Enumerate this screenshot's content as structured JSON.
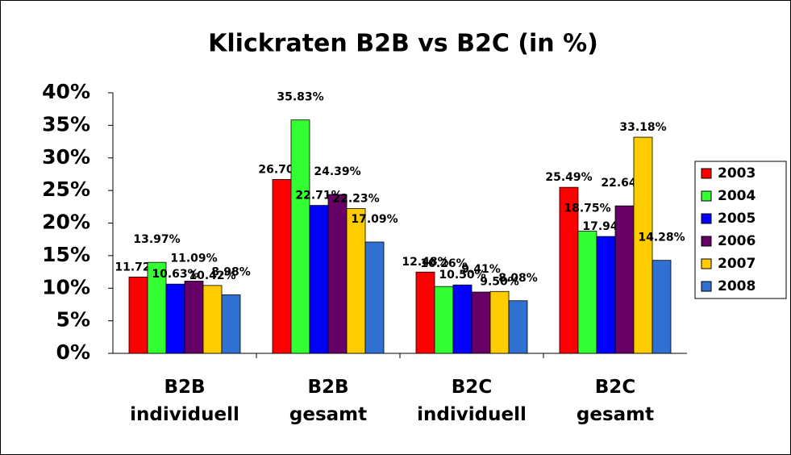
{
  "chart_data": {
    "type": "bar",
    "title": "Klickraten B2B vs B2C (in %)",
    "categories": [
      "B2B individuell",
      "B2B gesamt",
      "B2C individuell",
      "B2C gesamt"
    ],
    "series": [
      {
        "name": "2003",
        "color": "#ff0000",
        "values": [
          11.72,
          26.7,
          12.48,
          25.49
        ],
        "value_labels": [
          "11.72%",
          "26.70%",
          "12.48%",
          "25.49%"
        ]
      },
      {
        "name": "2004",
        "color": "#33ff33",
        "values": [
          13.97,
          35.83,
          10.26,
          18.75
        ],
        "value_labels": [
          "13.97%",
          "35.83%",
          "10.26%",
          "18.75%"
        ]
      },
      {
        "name": "2005",
        "color": "#0000ff",
        "values": [
          10.63,
          22.71,
          10.5,
          17.94
        ],
        "value_labels": [
          "10.63%",
          "22.71%",
          "10.50%",
          "17.94%"
        ]
      },
      {
        "name": "2006",
        "color": "#660066",
        "values": [
          11.09,
          24.39,
          9.41,
          22.64
        ],
        "value_labels": [
          "11.09%",
          "24.39%",
          "9.41%",
          "22.64%"
        ]
      },
      {
        "name": "2007",
        "color": "#ffcc00",
        "values": [
          10.42,
          22.23,
          9.5,
          33.18
        ],
        "value_labels": [
          "10.42%",
          "22.23%",
          "9.50%",
          "33.18%"
        ]
      },
      {
        "name": "2008",
        "color": "#3070d0",
        "values": [
          8.98,
          17.09,
          8.08,
          14.28
        ],
        "value_labels": [
          "8.98%",
          "17.09%",
          "8.08%",
          "14.28%"
        ]
      }
    ],
    "ylim": [
      0,
      40
    ],
    "yticks": [
      {
        "value": 0,
        "label": "0%"
      },
      {
        "value": 5,
        "label": "5%"
      },
      {
        "value": 10,
        "label": "10%"
      },
      {
        "value": 15,
        "label": "15%"
      },
      {
        "value": 20,
        "label": "20%"
      },
      {
        "value": 25,
        "label": "25%"
      },
      {
        "value": 30,
        "label": "30%"
      },
      {
        "value": 35,
        "label": "35%"
      },
      {
        "value": 40,
        "label": "40%"
      }
    ],
    "legend": "right"
  }
}
